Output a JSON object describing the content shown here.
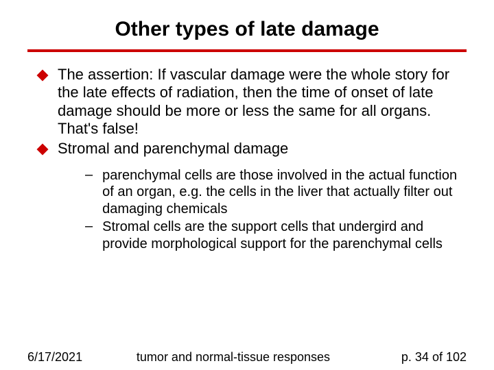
{
  "title": "Other types of late damage",
  "rule_color": "#cc0000",
  "bullets": {
    "b1": "The assertion: If vascular damage were the whole story for the late effects of radiation, then the time of onset of late damage should be more or less the same for all organs. That's false!",
    "b2": "Stromal and parenchymal damage"
  },
  "subbullets": {
    "s1": "parenchymal cells are those involved in the actual function of an organ, e.g. the cells in the liver that actually filter out damaging chemicals",
    "s2": "Stromal cells are the support cells that undergird and provide morphological support for the parenchymal cells"
  },
  "footer": {
    "date": "6/17/2021",
    "center": "tumor and normal-tissue responses",
    "page": "p. 34 of 102"
  }
}
